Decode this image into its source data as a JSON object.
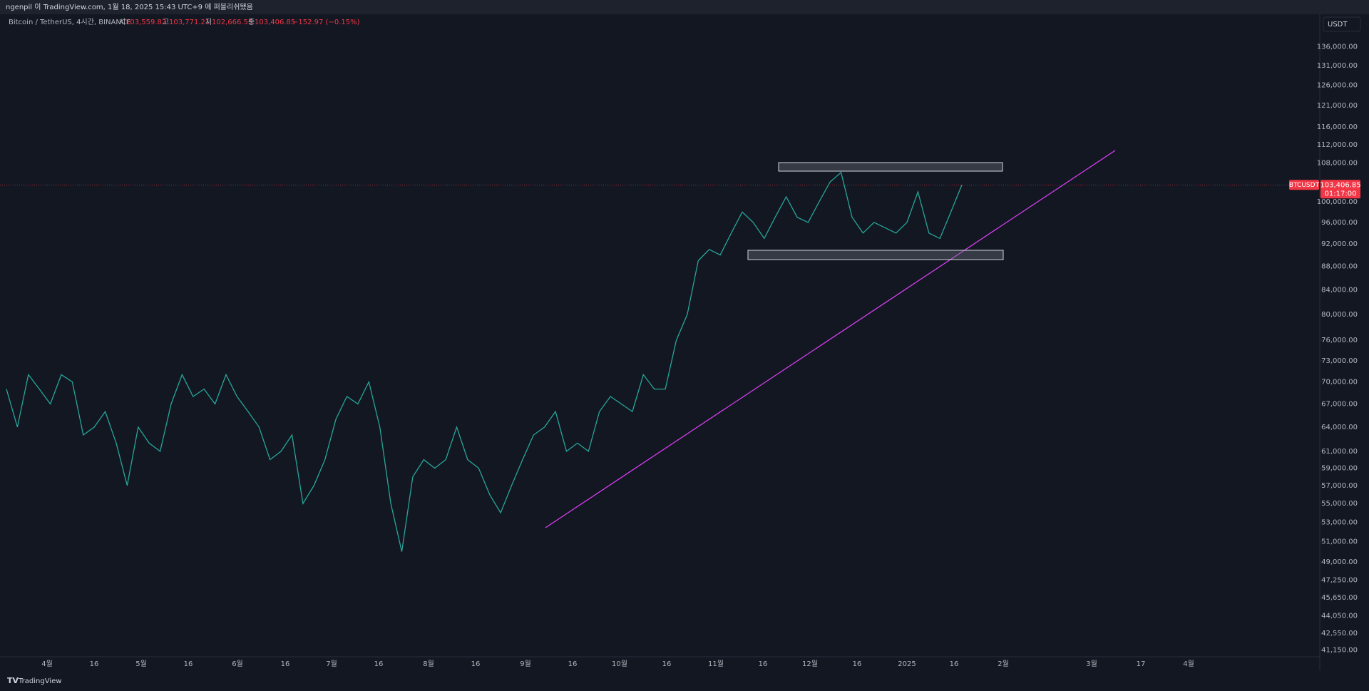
{
  "header": {
    "title": "ngenpil 이 TradingView.com, 1월 18, 2025 15:43 UTC+9 에 퍼블리쉬됐음"
  },
  "legend": {
    "symbol": "Bitcoin / TetherUS, 4시간, BINANCE",
    "open_label": "시",
    "open": "103,559.82",
    "high_label": "고",
    "high": "103,771.21",
    "low_label": "저",
    "low": "102,666.55",
    "close_label": "종",
    "close": "103,406.85",
    "change": "−152.97 (−0.15%)"
  },
  "currency": "USDT",
  "footer": {
    "brand": "TradingView"
  },
  "chart_data": {
    "type": "line",
    "color": "#26a69a",
    "log": true,
    "values": [
      69000,
      64000,
      71000,
      69000,
      67000,
      71000,
      70000,
      63000,
      64000,
      66000,
      62000,
      57000,
      64000,
      62000,
      61000,
      67000,
      71000,
      68000,
      69000,
      67000,
      71000,
      68000,
      66000,
      64000,
      60000,
      61000,
      63000,
      55000,
      57000,
      60000,
      65000,
      68000,
      67000,
      70000,
      64000,
      55000,
      50000,
      58000,
      60000,
      59000,
      60000,
      64000,
      60000,
      59000,
      56000,
      54000,
      57000,
      60000,
      63000,
      64000,
      66000,
      61000,
      62000,
      61000,
      66000,
      68000,
      67000,
      66000,
      71000,
      69000,
      69000,
      76000,
      80000,
      89000,
      91000,
      90000,
      94000,
      98000,
      96000,
      93000,
      97000,
      101000,
      97000,
      96000,
      100000,
      104000,
      106000,
      97000,
      94000,
      96000,
      95000,
      94000,
      96000,
      102000,
      94000,
      93000,
      98000,
      103406.85
    ],
    "ylim": [
      40600,
      144800
    ],
    "yticks": [
      {
        "value": 136000,
        "label": "136,000.00"
      },
      {
        "value": 131000,
        "label": "131,000.00"
      },
      {
        "value": 126000,
        "label": "126,000.00"
      },
      {
        "value": 121000,
        "label": "121,000.00"
      },
      {
        "value": 116000,
        "label": "116,000.00"
      },
      {
        "value": 112000,
        "label": "112,000.00"
      },
      {
        "value": 108000,
        "label": "108,000.00"
      },
      {
        "value": 100000,
        "label": "100,000.00"
      },
      {
        "value": 96000,
        "label": "96,000.00"
      },
      {
        "value": 92000,
        "label": "92,000.00"
      },
      {
        "value": 88000,
        "label": "88,000.00"
      },
      {
        "value": 84000,
        "label": "84,000.00"
      },
      {
        "value": 80000,
        "label": "80,000.00"
      },
      {
        "value": 76000,
        "label": "76,000.00"
      },
      {
        "value": 73000,
        "label": "73,000.00"
      },
      {
        "value": 70000,
        "label": "70,000.00"
      },
      {
        "value": 67000,
        "label": "67,000.00"
      },
      {
        "value": 64000,
        "label": "64,000.00"
      },
      {
        "value": 61000,
        "label": "61,000.00"
      },
      {
        "value": 59000,
        "label": "59,000.00"
      },
      {
        "value": 57000,
        "label": "57,000.00"
      },
      {
        "value": 55000,
        "label": "55,000.00"
      },
      {
        "value": 53000,
        "label": "53,000.00"
      },
      {
        "value": 51000,
        "label": "51,000.00"
      },
      {
        "value": 49000,
        "label": "49,000.00"
      },
      {
        "value": 47250,
        "label": "47,250.00"
      },
      {
        "value": 45650,
        "label": "45,650.00"
      },
      {
        "value": 44050,
        "label": "44,050.00"
      },
      {
        "value": 42550,
        "label": "42,550.00"
      },
      {
        "value": 41150,
        "label": "41,150.00"
      }
    ],
    "x_tick_labels": [
      "4월",
      "16",
      "5월",
      "16",
      "6월",
      "16",
      "7월",
      "16",
      "8월",
      "16",
      "9월",
      "16",
      "10월",
      "16",
      "11월",
      "16",
      "12월",
      "16",
      "2025",
      "16",
      "2월",
      "3월",
      "17",
      "4월"
    ],
    "last_price": {
      "symbol": "BTCUSDT",
      "value": 103406.85,
      "label": "103,406.85",
      "countdown": "01:17:00",
      "color": "#f23645"
    }
  }
}
